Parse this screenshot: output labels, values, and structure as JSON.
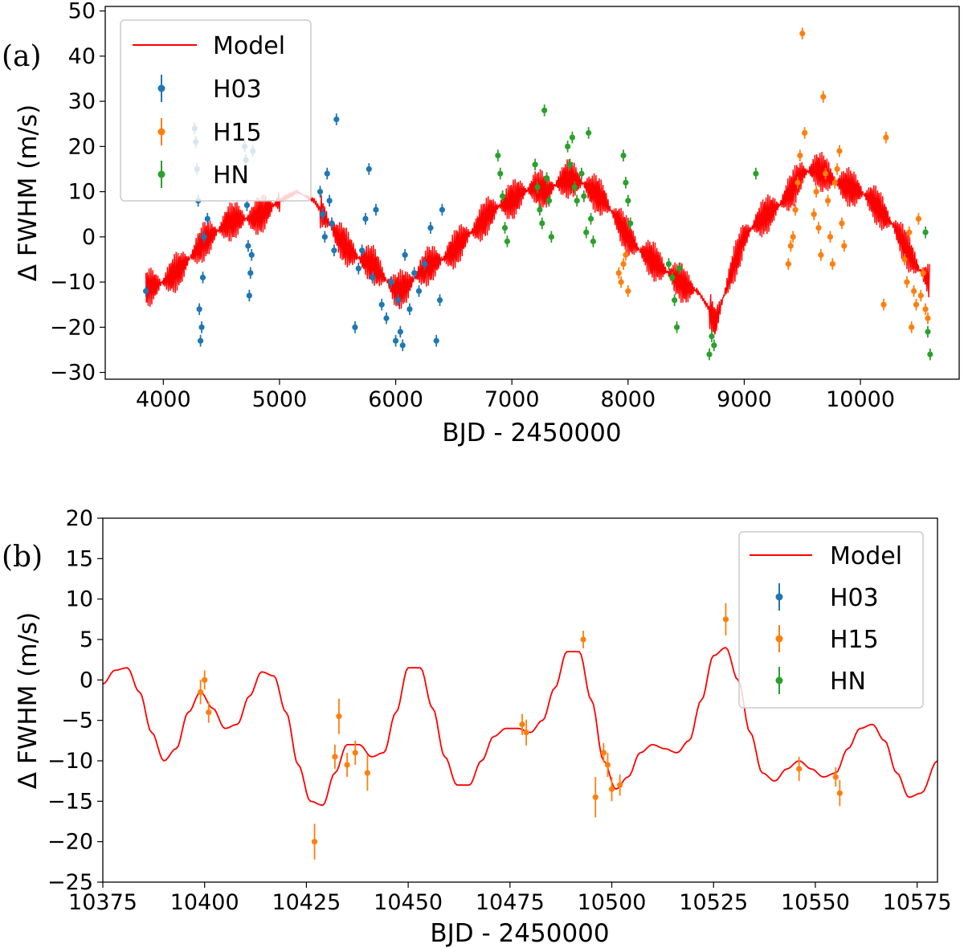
{
  "chart_data": [
    {
      "type": "scatter",
      "panel_label": "(a)",
      "xlabel": "BJD - 2450000",
      "ylabel": "Δ FWHM (m/s)",
      "xlim": [
        3500,
        10850
      ],
      "ylim": [
        -31.5,
        51
      ],
      "xticks": [
        4000,
        5000,
        6000,
        7000,
        8000,
        9000,
        10000
      ],
      "xtick_labels": [
        "4000",
        "5000",
        "6000",
        "7000",
        "8000",
        "9000",
        "10000"
      ],
      "yticks": [
        -30,
        -20,
        -10,
        0,
        10,
        20,
        30,
        40,
        50
      ],
      "ytick_labels": [
        "−30",
        "−20",
        "−10",
        "0",
        "10",
        "20",
        "30",
        "40",
        "50"
      ],
      "legend_position": "top-left",
      "legend": [
        "Model",
        "H03",
        "H15",
        "HN"
      ],
      "series": [
        {
          "name": "Model",
          "kind": "line",
          "color": "#ff0000",
          "x": [
            3850,
            4000,
            4150,
            4250,
            4350,
            4450,
            4550,
            4650,
            4750,
            4850,
            5000,
            5150,
            5300,
            5400,
            5500,
            5600,
            5700,
            5800,
            5900,
            6000,
            6100,
            6200,
            6300,
            6400,
            6500,
            6600,
            6700,
            6800,
            6900,
            7000,
            7100,
            7200,
            7300,
            7400,
            7500,
            7600,
            7700,
            7800,
            7900,
            8000,
            8100,
            8200,
            8300,
            8400,
            8500,
            8600,
            8700,
            8750,
            8800,
            8900,
            9000,
            9100,
            9200,
            9300,
            9400,
            9500,
            9600,
            9700,
            9800,
            9900,
            10000,
            10100,
            10200,
            10300,
            10400,
            10500,
            10600
          ],
          "y": [
            -11.5,
            -10,
            -7,
            -4,
            -1,
            1,
            3,
            4,
            4,
            5,
            8,
            10,
            8,
            4,
            0,
            -3,
            -5,
            -6,
            -9,
            -12,
            -11,
            -8,
            -6,
            -5,
            -3,
            0,
            2,
            5,
            7,
            8,
            10,
            11,
            10,
            12,
            13,
            12,
            10,
            8,
            4,
            0,
            -3,
            -5,
            -7,
            -9,
            -11,
            -12,
            -16,
            -19,
            -15,
            -7,
            0,
            3,
            5,
            7,
            10,
            14,
            15,
            14,
            12,
            11,
            10,
            8,
            5,
            2,
            -3,
            -7,
            -10
          ]
        },
        {
          "name": "H03",
          "kind": "points",
          "color": "#1f77b4",
          "x": [
            3850,
            4270,
            4280,
            4290,
            4300,
            4310,
            4320,
            4330,
            4340,
            4350,
            4380,
            4700,
            4710,
            4720,
            4730,
            4740,
            4750,
            4760,
            4770,
            5350,
            5370,
            5390,
            5410,
            5430,
            5450,
            5470,
            5490,
            5650,
            5680,
            5710,
            5740,
            5770,
            5800,
            5830,
            5880,
            5920,
            5960,
            6000,
            6020,
            6040,
            6060,
            6080,
            6120,
            6160,
            6200,
            6250,
            6300,
            6350,
            6380,
            6400
          ],
          "y": [
            -12,
            24,
            21,
            15,
            8,
            -16,
            -23,
            -20,
            -9,
            0,
            4,
            20,
            17,
            7,
            -2,
            -13,
            -8,
            -4,
            19,
            10,
            5,
            0,
            14,
            8,
            3,
            -3,
            26,
            -20,
            -7,
            -3,
            4,
            15,
            -9,
            6,
            -15,
            -18,
            -10,
            -23,
            -14,
            -21,
            -24,
            -4,
            -16,
            -8,
            -12,
            -6,
            2,
            -23,
            -14,
            6
          ]
        },
        {
          "name": "H15",
          "kind": "points",
          "color": "#ff7f0e",
          "x": [
            7920,
            7940,
            7960,
            7980,
            8000,
            9380,
            9400,
            9420,
            9440,
            9460,
            9480,
            9500,
            9520,
            9600,
            9620,
            9640,
            9660,
            9680,
            9700,
            9720,
            9740,
            9760,
            9780,
            9800,
            9820,
            9840,
            9860,
            10200,
            10220,
            10380,
            10400,
            10420,
            10440,
            10460,
            10480,
            10500,
            10520,
            10540,
            10560,
            10580
          ],
          "y": [
            -8,
            -10,
            -6,
            -4,
            -12,
            -6,
            -2,
            0,
            6,
            12,
            18,
            45,
            23,
            5,
            10,
            2,
            -4,
            31,
            14,
            8,
            0,
            -6,
            12,
            15,
            19,
            3,
            -2,
            -15,
            22,
            -5,
            -10,
            1,
            -20,
            -12,
            -15,
            4,
            -13,
            -8,
            -16,
            -18
          ]
        },
        {
          "name": "HN",
          "kind": "points",
          "color": "#2ca02c",
          "x": [
            6880,
            6900,
            6920,
            6940,
            6960,
            7200,
            7220,
            7240,
            7260,
            7280,
            7300,
            7320,
            7340,
            7480,
            7500,
            7520,
            7540,
            7560,
            7600,
            7620,
            7640,
            7660,
            7680,
            7700,
            7960,
            7980,
            8000,
            8020,
            8350,
            8380,
            8400,
            8420,
            8440,
            8700,
            8720,
            8740,
            9100,
            10560,
            10580,
            10600
          ],
          "y": [
            18,
            14,
            9,
            2,
            -1,
            16,
            11,
            6,
            3,
            28,
            13,
            8,
            0,
            20,
            16,
            22,
            11,
            8,
            14,
            9,
            1,
            23,
            4,
            -1,
            18,
            12,
            8,
            3,
            -6,
            -9,
            -14,
            -20,
            -7,
            -26,
            -22,
            -24,
            14,
            1,
            -21,
            -26
          ]
        }
      ]
    },
    {
      "type": "scatter",
      "panel_label": "(b)",
      "xlabel": "BJD - 2450000",
      "ylabel": "Δ FWHM (m/s)",
      "xlim": [
        10375,
        10580
      ],
      "ylim": [
        -25,
        20
      ],
      "xticks": [
        10375,
        10400,
        10425,
        10450,
        10475,
        10500,
        10525,
        10550,
        10575
      ],
      "xtick_labels": [
        "10375",
        "10400",
        "10425",
        "10450",
        "10475",
        "10500",
        "10525",
        "10550",
        "10575"
      ],
      "yticks": [
        -25,
        -20,
        -15,
        -10,
        -5,
        0,
        5,
        10,
        15,
        20
      ],
      "ytick_labels": [
        "−25",
        "−20",
        "−15",
        "−10",
        "−5",
        "0",
        "5",
        "10",
        "15",
        "20"
      ],
      "legend_position": "top-right",
      "legend": [
        "Model",
        "H03",
        "H15",
        "HN"
      ],
      "series": [
        {
          "name": "Model",
          "kind": "line",
          "color": "#ff0000",
          "x": [
            10375,
            10378,
            10381,
            10384,
            10387,
            10390,
            10393,
            10396,
            10399,
            10402,
            10405,
            10408,
            10411,
            10414,
            10417,
            10420,
            10423,
            10426,
            10429,
            10432,
            10435,
            10438,
            10441,
            10444,
            10447,
            10450,
            10453,
            10456,
            10459,
            10462,
            10465,
            10468,
            10471,
            10474,
            10477,
            10480,
            10483,
            10486,
            10489,
            10492,
            10495,
            10498,
            10501,
            10504,
            10507,
            10510,
            10513,
            10516,
            10519,
            10522,
            10525,
            10528,
            10531,
            10534,
            10537,
            10540,
            10543,
            10546,
            10549,
            10552,
            10555,
            10558,
            10561,
            10564,
            10567,
            10570,
            10573,
            10576,
            10580
          ],
          "y": [
            -0.5,
            1.2,
            1.5,
            -1.5,
            -6.5,
            -10.0,
            -8.5,
            -4.0,
            -1.5,
            -3.5,
            -6.0,
            -5.5,
            -2.0,
            1.0,
            0.5,
            -4.0,
            -10.5,
            -15.0,
            -15.5,
            -11.5,
            -8.0,
            -8.0,
            -9.5,
            -9.0,
            -4.0,
            1.5,
            1.5,
            -3.5,
            -9.5,
            -13.0,
            -13.0,
            -10.0,
            -7.0,
            -6.0,
            -6.0,
            -6.5,
            -5.0,
            -1.0,
            3.5,
            3.5,
            -2.5,
            -10.0,
            -13.5,
            -12.0,
            -9.0,
            -8.0,
            -8.5,
            -9.0,
            -7.5,
            -2.5,
            3.0,
            4.0,
            0.0,
            -6.5,
            -11.5,
            -12.5,
            -11.0,
            -10.0,
            -11.0,
            -12.0,
            -11.5,
            -8.5,
            -6.0,
            -5.5,
            -7.5,
            -11.5,
            -14.5,
            -14.0,
            -10.0
          ]
        },
        {
          "name": "H03",
          "kind": "points",
          "color": "#1f77b4",
          "x": [],
          "y": []
        },
        {
          "name": "H15",
          "kind": "points",
          "color": "#ff7f0e",
          "x": [
            10399,
            10400,
            10401,
            10427,
            10432,
            10433,
            10435,
            10437,
            10440,
            10478,
            10479,
            10493,
            10496,
            10498,
            10499,
            10500,
            10502,
            10528,
            10546,
            10555,
            10556
          ],
          "y": [
            -1.5,
            0,
            -4,
            -20,
            -9.5,
            -4.5,
            -10.5,
            -9,
            -11.5,
            -5.5,
            -6.5,
            5,
            -14.5,
            -9,
            -10.5,
            -13.5,
            -13,
            7.5,
            -11,
            -12,
            -14
          ],
          "err": [
            1.5,
            1.2,
            1.3,
            2.2,
            1.5,
            2.2,
            1.5,
            1.5,
            2.2,
            1.3,
            1.6,
            1.1,
            2.5,
            1.2,
            1.5,
            1.5,
            1.3,
            2.0,
            1.5,
            1.2,
            1.6
          ]
        },
        {
          "name": "HN",
          "kind": "points",
          "color": "#2ca02c",
          "x": [],
          "y": []
        }
      ]
    }
  ]
}
